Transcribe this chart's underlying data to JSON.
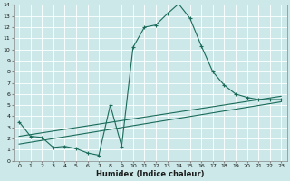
{
  "xlabel": "Humidex (Indice chaleur)",
  "xlim": [
    -0.5,
    23.5
  ],
  "ylim": [
    0,
    14
  ],
  "xticks": [
    0,
    1,
    2,
    3,
    4,
    5,
    6,
    7,
    8,
    9,
    10,
    11,
    12,
    13,
    14,
    15,
    16,
    17,
    18,
    19,
    20,
    21,
    22,
    23
  ],
  "yticks": [
    0,
    1,
    2,
    3,
    4,
    5,
    6,
    7,
    8,
    9,
    10,
    11,
    12,
    13,
    14
  ],
  "bg_color": "#cce8e8",
  "line_color": "#1a6b5a",
  "grid_color": "#ffffff",
  "line1_x": [
    0,
    1,
    2,
    3,
    4,
    5,
    6,
    7,
    8,
    9,
    10,
    11,
    12,
    13,
    14,
    15,
    16,
    17,
    18,
    19,
    20,
    21,
    22,
    23
  ],
  "line1_y": [
    3.5,
    2.2,
    2.1,
    1.2,
    1.3,
    1.1,
    0.7,
    0.5,
    5.0,
    1.3,
    10.2,
    12.0,
    12.2,
    13.2,
    14.1,
    12.8,
    10.3,
    8.0,
    6.8,
    6.0,
    5.7,
    5.5,
    5.5,
    5.5
  ],
  "line2_x": [
    0,
    23
  ],
  "line2_y": [
    2.2,
    5.8
  ],
  "line3_x": [
    0,
    23
  ],
  "line3_y": [
    1.5,
    5.3
  ],
  "xlabel_fontsize": 6.0,
  "tick_fontsize": 4.5
}
